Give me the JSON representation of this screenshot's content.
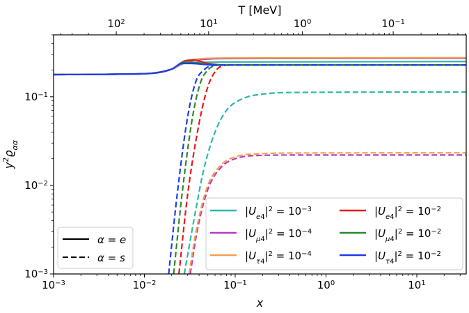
{
  "chart_data": {
    "type": "line",
    "xscale": "log",
    "yscale": "log",
    "xlim": [
      0.001,
      35
    ],
    "ylim": [
      0.001,
      0.5
    ],
    "xlabel_parts": {
      "base": "x"
    },
    "ylabel_parts": {
      "base": "y",
      "sup": "2",
      "main": "ϱ",
      "sub": "αα"
    },
    "top_xlabel": "T [MeV]",
    "x_ticks": [
      {
        "value": 0.001,
        "base": "10",
        "exp": "−3"
      },
      {
        "value": 0.01,
        "base": "10",
        "exp": "−2"
      },
      {
        "value": 0.1,
        "base": "10",
        "exp": "−1"
      },
      {
        "value": 1,
        "base": "10",
        "exp": "0"
      },
      {
        "value": 10,
        "base": "10",
        "exp": "1"
      }
    ],
    "y_ticks": [
      {
        "value": 0.001,
        "base": "10",
        "exp": "−3"
      },
      {
        "value": 0.01,
        "base": "10",
        "exp": "−2"
      },
      {
        "value": 0.1,
        "base": "10",
        "exp": "−1"
      }
    ],
    "top_ticks": [
      {
        "x_value": 0.0049,
        "base": "10",
        "exp": "2"
      },
      {
        "x_value": 0.051,
        "base": "10",
        "exp": "1"
      },
      {
        "x_value": 0.55,
        "base": "10",
        "exp": "0"
      },
      {
        "x_value": 5.5,
        "base": "10",
        "exp": "−1"
      }
    ],
    "series": [
      {
        "name": "|U_e4|^2 = 10^-3, α = e",
        "color": "#2ab7b0",
        "style": "solid",
        "flavor": "e",
        "mixing": "1e-3",
        "points": [
          [
            0.001,
            0.178
          ],
          [
            0.01,
            0.182
          ],
          [
            0.02,
            0.205
          ],
          [
            0.028,
            0.24
          ],
          [
            0.04,
            0.245
          ],
          [
            0.08,
            0.247
          ],
          [
            35,
            0.25
          ]
        ]
      },
      {
        "name": "|U_μ4|^2 = 10^-4, α = e",
        "color": "#b63cc0",
        "style": "solid",
        "flavor": "μ",
        "mixing": "1e-4",
        "points": [
          [
            0.001,
            0.178
          ],
          [
            0.01,
            0.182
          ],
          [
            0.02,
            0.205
          ],
          [
            0.028,
            0.245
          ],
          [
            0.04,
            0.262
          ],
          [
            0.08,
            0.27
          ],
          [
            35,
            0.272
          ]
        ]
      },
      {
        "name": "|U_τ4|^2 = 10^-4, α = e",
        "color": "#f5a04a",
        "style": "solid",
        "flavor": "τ",
        "mixing": "1e-4",
        "points": [
          [
            0.001,
            0.178
          ],
          [
            0.01,
            0.182
          ],
          [
            0.02,
            0.205
          ],
          [
            0.028,
            0.248
          ],
          [
            0.04,
            0.268
          ],
          [
            0.08,
            0.274
          ],
          [
            35,
            0.276
          ]
        ]
      },
      {
        "name": "|U_e4|^2 = 10^-2, α = e",
        "color": "#e31a1c",
        "style": "solid",
        "flavor": "e",
        "mixing": "1e-2",
        "points": [
          [
            0.001,
            0.178
          ],
          [
            0.01,
            0.182
          ],
          [
            0.02,
            0.205
          ],
          [
            0.028,
            0.255
          ],
          [
            0.035,
            0.26
          ],
          [
            0.05,
            0.238
          ],
          [
            0.08,
            0.228
          ],
          [
            35,
            0.228
          ]
        ]
      },
      {
        "name": "|U_μ4|^2 = 10^-2, α = e",
        "color": "#2b8a2b",
        "style": "solid",
        "flavor": "μ",
        "mixing": "1e-2",
        "points": [
          [
            0.001,
            0.178
          ],
          [
            0.01,
            0.182
          ],
          [
            0.02,
            0.205
          ],
          [
            0.027,
            0.245
          ],
          [
            0.033,
            0.245
          ],
          [
            0.05,
            0.232
          ],
          [
            0.08,
            0.228
          ],
          [
            35,
            0.228
          ]
        ]
      },
      {
        "name": "|U_τ4|^2 = 10^-2, α = e",
        "color": "#1e3cf0",
        "style": "solid",
        "flavor": "τ",
        "mixing": "1e-2",
        "points": [
          [
            0.001,
            0.178
          ],
          [
            0.01,
            0.182
          ],
          [
            0.02,
            0.205
          ],
          [
            0.026,
            0.238
          ],
          [
            0.032,
            0.238
          ],
          [
            0.05,
            0.23
          ],
          [
            0.08,
            0.228
          ],
          [
            35,
            0.228
          ]
        ]
      },
      {
        "name": "|U_e4|^2 = 10^-3, α = s",
        "color": "#2ab7b0",
        "style": "dashed",
        "flavor": "e",
        "mixing": "1e-3",
        "points": [
          [
            0.0275,
            0.001
          ],
          [
            0.035,
            0.004
          ],
          [
            0.045,
            0.015
          ],
          [
            0.06,
            0.04
          ],
          [
            0.08,
            0.07
          ],
          [
            0.12,
            0.095
          ],
          [
            0.2,
            0.107
          ],
          [
            0.5,
            0.112
          ],
          [
            35,
            0.113
          ]
        ]
      },
      {
        "name": "|U_μ4|^2 = 10^-4, α = s",
        "color": "#b63cc0",
        "style": "dashed",
        "flavor": "μ",
        "mixing": "1e-4",
        "points": [
          [
            0.032,
            0.001
          ],
          [
            0.038,
            0.003
          ],
          [
            0.05,
            0.009
          ],
          [
            0.07,
            0.016
          ],
          [
            0.1,
            0.02
          ],
          [
            0.2,
            0.0218
          ],
          [
            0.5,
            0.022
          ],
          [
            35,
            0.022
          ]
        ]
      },
      {
        "name": "|U_τ4|^2 = 10^-4, α = s",
        "color": "#f5a04a",
        "style": "dashed",
        "flavor": "τ",
        "mixing": "1e-4",
        "points": [
          [
            0.031,
            0.001
          ],
          [
            0.037,
            0.003
          ],
          [
            0.049,
            0.0095
          ],
          [
            0.07,
            0.017
          ],
          [
            0.1,
            0.021
          ],
          [
            0.2,
            0.0228
          ],
          [
            0.5,
            0.0232
          ],
          [
            35,
            0.0233
          ]
        ]
      },
      {
        "name": "|U_e4|^2 = 10^-2, α = s",
        "color": "#e31a1c",
        "style": "dashed",
        "flavor": "e",
        "mixing": "1e-2",
        "points": [
          [
            0.024,
            0.001
          ],
          [
            0.03,
            0.008
          ],
          [
            0.04,
            0.05
          ],
          [
            0.05,
            0.13
          ],
          [
            0.062,
            0.2
          ],
          [
            0.075,
            0.225
          ],
          [
            0.1,
            0.228
          ],
          [
            35,
            0.228
          ]
        ]
      },
      {
        "name": "|U_μ4|^2 = 10^-2, α = s",
        "color": "#2b8a2b",
        "style": "dashed",
        "flavor": "μ",
        "mixing": "1e-2",
        "points": [
          [
            0.021,
            0.001
          ],
          [
            0.026,
            0.008
          ],
          [
            0.034,
            0.06
          ],
          [
            0.042,
            0.15
          ],
          [
            0.05,
            0.2
          ],
          [
            0.06,
            0.225
          ],
          [
            0.08,
            0.228
          ],
          [
            35,
            0.228
          ]
        ]
      },
      {
        "name": "|U_τ4|^2 = 10^-2, α = s",
        "color": "#1e3cf0",
        "style": "dashed",
        "flavor": "τ",
        "mixing": "1e-2",
        "points": [
          [
            0.0185,
            0.001
          ],
          [
            0.023,
            0.008
          ],
          [
            0.03,
            0.06
          ],
          [
            0.037,
            0.15
          ],
          [
            0.045,
            0.2
          ],
          [
            0.055,
            0.225
          ],
          [
            0.07,
            0.228
          ],
          [
            35,
            0.228
          ]
        ]
      }
    ],
    "legend_mixing": {
      "placement": "lower-right",
      "entries": [
        {
          "color": "#2ab7b0",
          "flavor": "e",
          "mixing_base": "10",
          "mixing_exp": "−3"
        },
        {
          "color": "#b63cc0",
          "flavor": "μ",
          "mixing_base": "10",
          "mixing_exp": "−4"
        },
        {
          "color": "#f5a04a",
          "flavor": "τ",
          "mixing_base": "10",
          "mixing_exp": "−4"
        },
        {
          "color": "#e31a1c",
          "flavor": "e",
          "mixing_base": "10",
          "mixing_exp": "−2"
        },
        {
          "color": "#2b8a2b",
          "flavor": "μ",
          "mixing_base": "10",
          "mixing_exp": "−2"
        },
        {
          "color": "#1e3cf0",
          "flavor": "τ",
          "mixing_base": "10",
          "mixing_exp": "−2"
        }
      ]
    },
    "legend_style": {
      "placement": "lower-left",
      "entries": [
        {
          "style": "solid",
          "label": "α = e"
        },
        {
          "style": "dashed",
          "label": "α = s"
        }
      ]
    }
  }
}
